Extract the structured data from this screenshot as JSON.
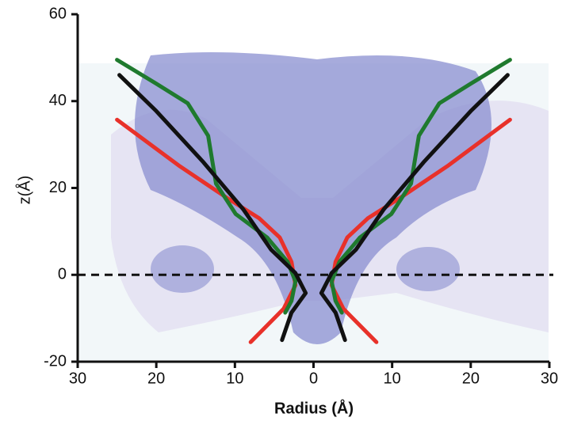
{
  "chart_data": {
    "type": "line",
    "x_label": "Radius (Å)",
    "y_label": "z(Å)",
    "xlim": [
      -30,
      30
    ],
    "xticks": [
      {
        "value": -30,
        "label": "30"
      },
      {
        "value": -20,
        "label": "20"
      },
      {
        "value": -10,
        "label": "10"
      },
      0,
      10,
      20,
      30
    ],
    "ylim": [
      -20,
      60
    ],
    "yticks": [
      -20,
      0,
      20,
      40,
      60
    ],
    "reference_line": 0,
    "series": [
      {
        "color": "#e8312a",
        "x": [
          -25,
          -17,
          -11,
          -6.9,
          -4.3,
          -2.8,
          -2.3,
          -3.8,
          -8,
          null,
          8,
          3.8,
          2.3,
          2.8,
          4.3,
          6.9,
          11,
          17,
          25
        ],
        "values": [
          35.7,
          25,
          17.7,
          13,
          8.6,
          3,
          -2.4,
          -7.8,
          -15.5,
          null,
          -15.5,
          -7.8,
          -2.4,
          3,
          8.6,
          13,
          17.7,
          25,
          35.7
        ]
      },
      {
        "color": "#1f7a2e",
        "x": [
          -25,
          -20,
          -16,
          -13.4,
          -12.4,
          -9.9,
          -5.9,
          -3.3,
          -2.3,
          -2.8,
          -3.6,
          null,
          3.6,
          2.8,
          2.3,
          3.3,
          5.9,
          9.9,
          12.4,
          13.4,
          16,
          20,
          25
        ],
        "values": [
          49.5,
          44,
          39.5,
          32,
          21,
          14,
          8.6,
          3,
          -1.5,
          -6,
          -8.7,
          null,
          -8.7,
          -6,
          -1.5,
          3,
          8.6,
          14,
          21,
          32,
          39.5,
          44,
          49.5
        ]
      },
      {
        "color": "#111111",
        "x": [
          -24.7,
          -20,
          -14,
          -8.9,
          -5.4,
          -2.3,
          -1,
          -2.8,
          -4,
          null,
          4,
          2.8,
          1,
          2.3,
          5.4,
          8.9,
          14,
          20,
          24.7
        ],
        "values": [
          46,
          37.7,
          25.9,
          15,
          5.8,
          0.4,
          -4.2,
          -8.7,
          -15,
          null,
          -15,
          -8.7,
          -4.2,
          0.4,
          5.8,
          15,
          25.9,
          37.7,
          46
        ]
      }
    ]
  }
}
